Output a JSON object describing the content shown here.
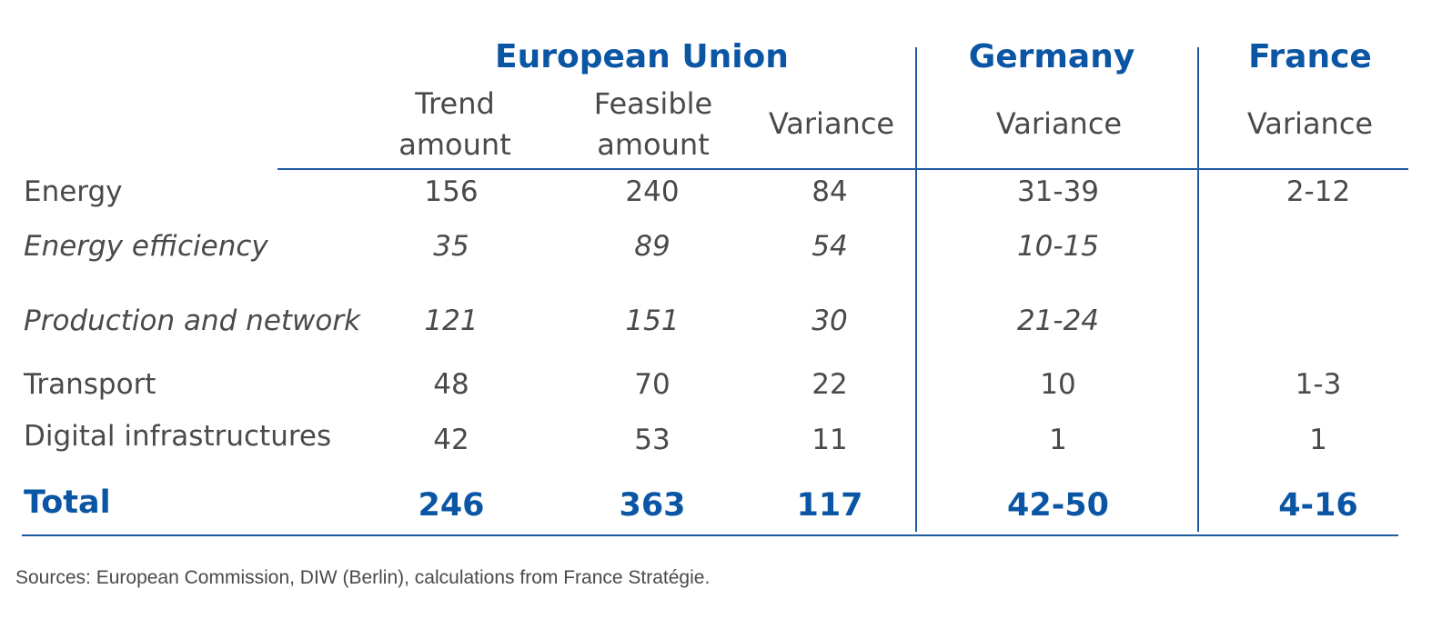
{
  "header": {
    "groups": [
      "European Union",
      "Germany",
      "France"
    ],
    "columns": [
      "Trend amount",
      "Feasible amount",
      "Variance",
      "Variance",
      "Variance"
    ]
  },
  "rows": [
    {
      "label": "Energy",
      "cells": [
        "156",
        "240",
        "84",
        "31-39",
        "2-12"
      ]
    },
    {
      "label": "Energy efficiency",
      "cells": [
        "35",
        "89",
        "54",
        "10-15",
        ""
      ]
    },
    {
      "label": "Production and network",
      "cells": [
        "121",
        "151",
        "30",
        "21-24",
        ""
      ]
    },
    {
      "label": "Transport",
      "cells": [
        "48",
        "70",
        "22",
        "10",
        "1-3"
      ]
    },
    {
      "label": "Digital infrastructures",
      "cells": [
        "42",
        "53",
        "11",
        "1",
        "1"
      ]
    }
  ],
  "total": {
    "label": "Total",
    "cells": [
      "246",
      "363",
      "117",
      "42-50",
      "4-16"
    ]
  },
  "source": "Sources: European Commission, DIW (Berlin), calculations from France Stratégie.",
  "colors": {
    "accent": "#0b56a4",
    "text": "#4a4a4a",
    "rule": "#1f5aa0"
  }
}
